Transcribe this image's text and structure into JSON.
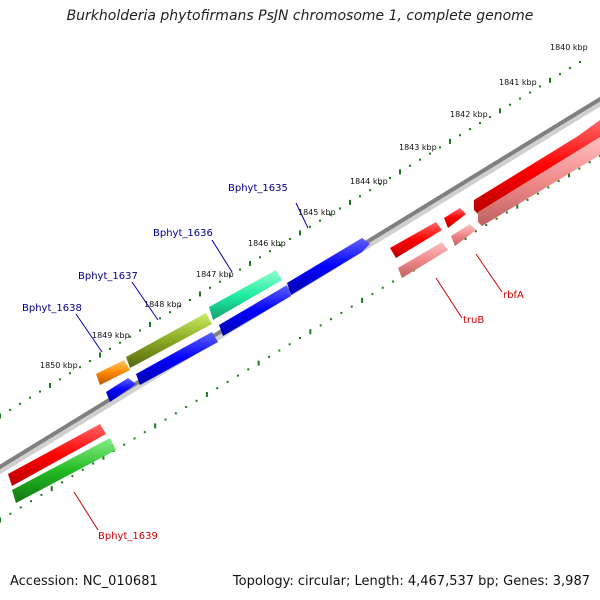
{
  "title": "Burkholderia phytofirmans PsJN chromosome 1, complete genome",
  "footer": {
    "accession": "Accession: NC_010681",
    "topology": "Topology: circular; Length: 4,467,537 bp; Genes: 3,987"
  },
  "ruler": {
    "labels": [
      "1840 kbp",
      "1841 kbp",
      "1842 kbp",
      "1843 kbp",
      "1844 kbp",
      "1845 kbp",
      "1846 kbp",
      "1847 kbp",
      "1848 kbp",
      "1849 kbp",
      "1850 kbp"
    ]
  },
  "genes": [
    {
      "name": "Bphyt_1635",
      "color": "#0000ff"
    },
    {
      "name": "Bphyt_1636",
      "color": "#00ffa0"
    },
    {
      "name": "Bphyt_1637",
      "color": "#99cc33"
    },
    {
      "name": "Bphyt_1638",
      "color": "#ff8800"
    },
    {
      "name": "Bphyt_1639",
      "color": "#ff0000"
    },
    {
      "name": "truB",
      "color": "#ff0000"
    },
    {
      "name": "rbfA",
      "color": "#ff0000"
    }
  ],
  "colors": {
    "forward_label": "#00008b",
    "reverse_label": "#cc0000",
    "ticks": "#1a7a1a",
    "backbone": "#808080"
  }
}
